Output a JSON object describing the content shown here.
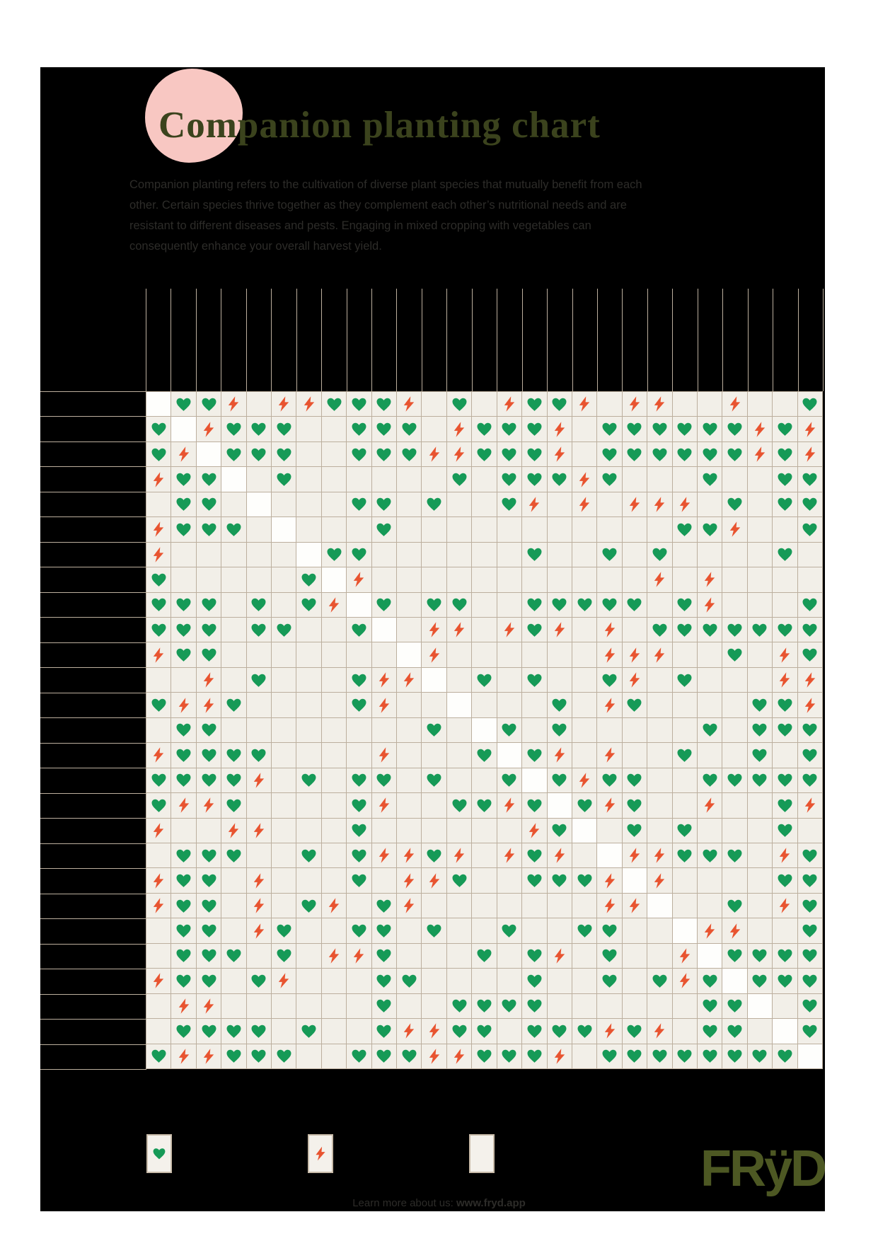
{
  "page": {
    "title": "Companion planting chart",
    "intro": "Companion planting refers to the cultivation of diverse plant species that mutually benefit from each other. Certain species thrive together as they complement each other’s nutritional needs and are resistant to different diseases and pests. Engaging in mixed cropping with vegetables can consequently enhance your overall harvest yield.",
    "footer": {
      "prefix": "Learn more about us: ",
      "link": "www.fryd.app"
    },
    "logo": "FRÿD"
  },
  "legend": {
    "items": [
      {
        "icon": "heart"
      },
      {
        "icon": "bolt"
      },
      {
        "icon": "empty"
      }
    ]
  },
  "colors": {
    "page_bg": "#ffffff",
    "card_bg": "#000000",
    "pink_blob": "#f8c7c2",
    "title": "#3b431d",
    "text": "#2d2c29",
    "grid_line": "#bcaf9e",
    "cell_bg": "#f2efe8",
    "heart": "#169a57",
    "bolt": "#e85430",
    "legend_box_bg": "#f4f1eb",
    "legend_box_border": "#c8bba9",
    "logo": "#4d5823"
  },
  "chart_data": {
    "type": "heatmap",
    "subtype": "companion-matrix",
    "size": 27,
    "labels_visible": false,
    "legend": {
      "G": "heart (good companions)",
      "B": "bolt (bad companions)",
      "N": "empty (neutral)",
      "S": "self / diagonal"
    },
    "cells": [
      "SGGBNBBGGGBNGNBGGBNBBNNBNNG",
      "GSBGGGNNGGGNBGGGBNGGGGGGBGB",
      "GBSGGGNNGGGBBGGGBNGGGGGGBGB",
      "BGGSNGNNNNNNGNGGGBGNNNGNNGG",
      "NGGNSNNNGGNGNNGBNBNBBBNGNGG",
      "BGGGNSNNNGNNNNNNNNNNNGGBNNG",
      "BNNNNNSGGNNNNNNGNNGNGNNNNGN",
      "GNNNNNGSBNNNNNNNNNNNBNBNNNN",
      "GGGNGNGBSGNGGNNGGGGGNGBNNNG",
      "GGGNGGNNGSNBBNBGBNBNGGGGGGG",
      "BGGNNNNNNNSBNNNNNNBBBNNGNBG",
      "NNBNGNNNGBBSNGNGNNGBNGNNNBB",
      "GBBGNNNNGBNNSNNNGNBGNNNNGGB",
      "NGGNNNNNNNNGNSGNGNNNNNGNGGG",
      "BGGGGNNNNBNNNGSGBNBNNGNNGNG",
      "GGGGBNGNGGNGNNGSGBGGNNGGGGG",
      "GBBGNNNNGBNNGGBGSGBGNNBNNGB",
      "BNNBBNNNGNNNNNNBGSNGNGNNNGN",
      "NGGGNNGNGBBGBNBGBNSBBGGGNBG",
      "BGGNBNNNGNBBGNNGGGBSBNNNNGG",
      "BGGNBNGBNGBNNNNNNNBBSNNGNBG",
      "NGGNBGNNGGNGNNGNNGGNNSBBNNG",
      "NGGGNGNBBGNNNGNGBNGNNBSGGGG",
      "BGGNGBNNNGGNNNNGNNGNGBGSGGG",
      "NBBNNNNNNGNNGGGGNNNNNNGGSNG",
      "NGGGGNGNNGBBGGNGGGBGBNGGNSG",
      "GBBGGGNNGGGBBGGGBNGGGGGGGGS"
    ]
  }
}
